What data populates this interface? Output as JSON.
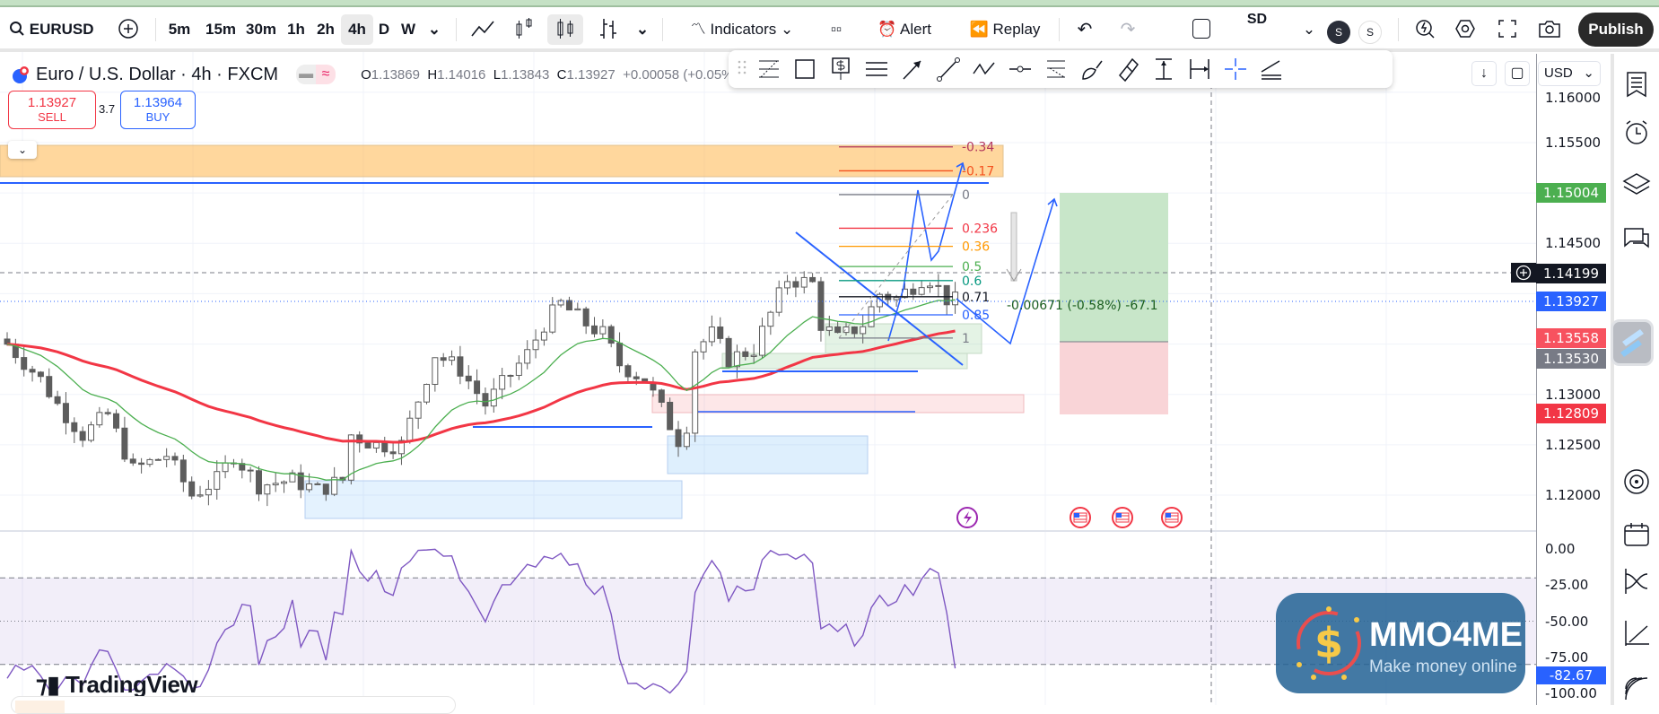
{
  "toolbar": {
    "symbol": "EURUSD",
    "intervals": [
      "5m",
      "15m",
      "30m",
      "1h",
      "2h",
      "4h",
      "D",
      "W"
    ],
    "selected_interval": "4h",
    "indicators_label": "Indicators",
    "alert_label": "Alert",
    "replay_label": "Replay",
    "layout_label": "SD",
    "user_badges": [
      "S",
      "S"
    ],
    "publish_label": "Publish"
  },
  "drawing_tools": [
    "fib-retracement",
    "rectangle",
    "price-label",
    "parallel-channel",
    "arrow",
    "trend-line",
    "path",
    "horizontal-ray",
    "fib-extension",
    "brush",
    "highlighter",
    "price-range",
    "date-range",
    "crosshair",
    "regression-trend"
  ],
  "legend": {
    "title": "Euro / U.S. Dollar · 4h · FXCM",
    "o_label": "O",
    "o": "1.13869",
    "h_label": "H",
    "h": "1.14016",
    "l_label": "L",
    "l": "1.13843",
    "c_label": "C",
    "c": "1.13927",
    "change": "+0.00058 (+0.05%)"
  },
  "trade": {
    "sell_price": "1.13927",
    "sell_label": "SELL",
    "spread": "3.7",
    "buy_price": "1.13964",
    "buy_label": "BUY"
  },
  "currency": "USD",
  "colors": {
    "up": "#ffffff",
    "down": "#5d5d5d",
    "ema_fast": "#4caf50",
    "ema_slow": "#f23645",
    "drawing": "#2962ff",
    "rsi": "#7e57c2",
    "long_profit": "#c8e6c9",
    "long_loss": "#f9d4d7"
  },
  "price_axis": {
    "ticks": [
      "1.16000",
      "1.15500",
      "1.14500",
      "1.13000",
      "1.12500",
      "1.12000"
    ],
    "tick_values": [
      1.16,
      1.155,
      1.145,
      1.13,
      1.125,
      1.12
    ],
    "labels": [
      {
        "text": "1.15004",
        "value": 1.15004,
        "color": "#4caf50"
      },
      {
        "text": "1.14199",
        "value": 1.14199,
        "color": "#131722"
      },
      {
        "text": "1.13927",
        "value": 1.13927,
        "color": "#2962ff"
      },
      {
        "text": "1.13558",
        "value": 1.13558,
        "color": "#f7525f"
      },
      {
        "text": "1.13530",
        "value": 1.1353,
        "color": "#787b86"
      },
      {
        "text": "1.12809",
        "value": 1.12809,
        "color": "#f23645"
      }
    ]
  },
  "oscillator": {
    "ticks": [
      "0.00",
      "-25.00",
      "-50.00",
      "-75.00",
      "-100.00"
    ],
    "tick_values": [
      0,
      -25,
      -50,
      -75,
      -100
    ],
    "current": "-82.67",
    "upper": -20,
    "lower": -80
  },
  "fib": {
    "levels": [
      {
        "label": "-0.34",
        "price": 1.15458,
        "color": "#b2365d"
      },
      {
        "label": "-0.17",
        "price": 1.1522,
        "color": "#f4511e"
      },
      {
        "label": "0",
        "price": 1.14984,
        "color": "#787b86"
      },
      {
        "label": "0.236",
        "price": 1.1465,
        "color": "#f23645"
      },
      {
        "label": "0.36",
        "price": 1.1447,
        "color": "#ff9800"
      },
      {
        "label": "0.5",
        "price": 1.1427,
        "color": "#4caf50"
      },
      {
        "label": "0.6",
        "price": 1.1413,
        "color": "#089981"
      },
      {
        "label": "0.71",
        "price": 1.1397,
        "color": "#131722"
      },
      {
        "label": "0.85",
        "price": 1.1379,
        "color": "#2962ff"
      },
      {
        "label": "1",
        "price": 1.1356,
        "color": "#787b86"
      }
    ]
  },
  "measure_label": "-0.00671 (-0.58%) -67.1",
  "chart_data": {
    "type": "candlestick",
    "price_path": [
      [
        0,
        1.135
      ],
      [
        4,
        1.1315
      ],
      [
        6,
        1.129
      ],
      [
        9,
        1.126
      ],
      [
        12,
        1.128
      ],
      [
        15,
        1.1225
      ],
      [
        19,
        1.124
      ],
      [
        22,
        1.12
      ],
      [
        25,
        1.1215
      ],
      [
        27,
        1.124
      ],
      [
        30,
        1.121
      ],
      [
        34,
        1.1215
      ],
      [
        37,
        1.1205
      ],
      [
        40,
        1.1215
      ],
      [
        41,
        1.126
      ],
      [
        44,
        1.125
      ],
      [
        47,
        1.125
      ],
      [
        49,
        1.1295
      ],
      [
        51,
        1.134
      ],
      [
        54,
        1.1325
      ],
      [
        57,
        1.129
      ],
      [
        59,
        1.131
      ],
      [
        62,
        1.134
      ],
      [
        64,
        1.137
      ],
      [
        66,
        1.139
      ],
      [
        69,
        1.137
      ],
      [
        71,
        1.136
      ],
      [
        73,
        1.133
      ],
      [
        76,
        1.1315
      ],
      [
        77,
        1.13
      ],
      [
        80,
        1.1255
      ],
      [
        81,
        1.127
      ],
      [
        82,
        1.1345
      ],
      [
        84,
        1.136
      ],
      [
        86,
        1.1335
      ],
      [
        89,
        1.1345
      ],
      [
        91,
        1.138
      ],
      [
        93,
        1.1415
      ],
      [
        96,
        1.141
      ],
      [
        97,
        1.137
      ],
      [
        99,
        1.1355
      ],
      [
        102,
        1.137
      ],
      [
        104,
        1.14
      ],
      [
        106,
        1.1395
      ],
      [
        109,
        1.1415
      ],
      [
        110,
        1.1415
      ],
      [
        112,
        1.1395
      ],
      [
        113,
        1.13927
      ]
    ]
  },
  "branding": {
    "logo": "TradingView",
    "watermark": "MMO4ME",
    "watermark_tag": "Make money online"
  }
}
